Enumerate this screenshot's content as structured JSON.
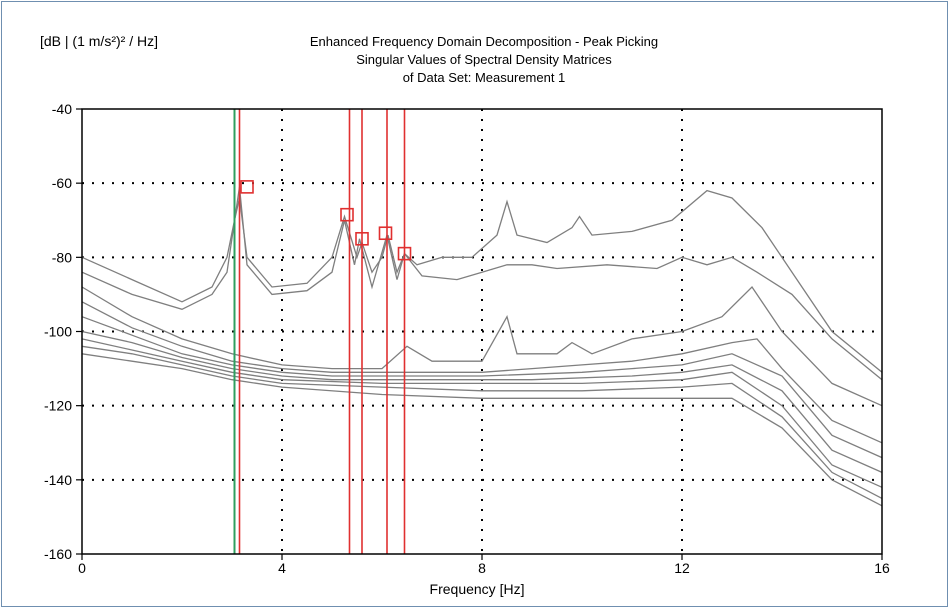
{
  "chart_data": {
    "type": "line",
    "title": [
      "Enhanced Frequency Domain Decomposition - Peak Picking",
      "Singular Values of Spectral Density Matrices",
      "of Data Set: Measurement 1"
    ],
    "xlabel": "Frequency [Hz]",
    "ylabel": "[dB | (1 m/s²)² / Hz]",
    "xlim": [
      0,
      16
    ],
    "ylim": [
      -160,
      -40
    ],
    "xticks": [
      0,
      4,
      8,
      12,
      16
    ],
    "yticks": [
      -40,
      -60,
      -80,
      -100,
      -120,
      -140,
      -160
    ],
    "grid": "dotted",
    "series": [
      {
        "values": [
          [
            0,
            -80
          ],
          [
            1,
            -86
          ],
          [
            2,
            -92
          ],
          [
            2.6,
            -88
          ],
          [
            2.9,
            -80
          ],
          [
            3.05,
            -70
          ],
          [
            3.15,
            -64
          ],
          [
            3.3,
            -80
          ],
          [
            3.8,
            -88
          ],
          [
            4.5,
            -87
          ],
          [
            5,
            -80
          ],
          [
            5.25,
            -69
          ],
          [
            5.5,
            -80
          ],
          [
            5.6,
            -76
          ],
          [
            5.8,
            -84
          ],
          [
            6.0,
            -80
          ],
          [
            6.12,
            -74
          ],
          [
            6.3,
            -84
          ],
          [
            6.45,
            -79
          ],
          [
            6.7,
            -82
          ],
          [
            7.2,
            -80
          ],
          [
            7.8,
            -80
          ],
          [
            8.3,
            -74
          ],
          [
            8.5,
            -65
          ],
          [
            8.7,
            -74
          ],
          [
            9.3,
            -76
          ],
          [
            9.8,
            -72
          ],
          [
            9.95,
            -69
          ],
          [
            10.2,
            -74
          ],
          [
            11,
            -73
          ],
          [
            11.8,
            -70
          ],
          [
            12.5,
            -62
          ],
          [
            13,
            -64
          ],
          [
            13.6,
            -72
          ],
          [
            14.2,
            -84
          ],
          [
            15,
            -100
          ],
          [
            16,
            -111
          ]
        ]
      },
      {
        "values": [
          [
            0,
            -84
          ],
          [
            1,
            -90
          ],
          [
            2,
            -94
          ],
          [
            2.6,
            -90
          ],
          [
            2.9,
            -84
          ],
          [
            3.15,
            -61
          ],
          [
            3.3,
            -82
          ],
          [
            3.8,
            -90
          ],
          [
            4.5,
            -89
          ],
          [
            5.0,
            -84
          ],
          [
            5.25,
            -70
          ],
          [
            5.45,
            -82
          ],
          [
            5.55,
            -75
          ],
          [
            5.8,
            -88
          ],
          [
            6.1,
            -74
          ],
          [
            6.3,
            -86
          ],
          [
            6.45,
            -79
          ],
          [
            6.8,
            -85
          ],
          [
            7.5,
            -86
          ],
          [
            8,
            -84
          ],
          [
            8.5,
            -82
          ],
          [
            9,
            -82
          ],
          [
            9.5,
            -83
          ],
          [
            10.5,
            -82
          ],
          [
            11.5,
            -83
          ],
          [
            12,
            -80
          ],
          [
            12.5,
            -82
          ],
          [
            13,
            -80
          ],
          [
            13.5,
            -84
          ],
          [
            14.2,
            -90
          ],
          [
            15,
            -102
          ],
          [
            16,
            -113
          ]
        ]
      },
      {
        "values": [
          [
            0,
            -88
          ],
          [
            1,
            -96
          ],
          [
            2,
            -102
          ],
          [
            3,
            -106
          ],
          [
            4,
            -109
          ],
          [
            5,
            -110
          ],
          [
            6,
            -110
          ],
          [
            6.5,
            -104
          ],
          [
            7,
            -108
          ],
          [
            8,
            -108
          ],
          [
            8.5,
            -96
          ],
          [
            8.7,
            -106
          ],
          [
            9.5,
            -106
          ],
          [
            9.8,
            -103
          ],
          [
            10.2,
            -106
          ],
          [
            11,
            -102
          ],
          [
            12,
            -100
          ],
          [
            12.8,
            -96
          ],
          [
            13.4,
            -88
          ],
          [
            14,
            -100
          ],
          [
            15,
            -114
          ],
          [
            16,
            -120
          ]
        ]
      },
      {
        "values": [
          [
            0,
            -92
          ],
          [
            1,
            -99
          ],
          [
            2,
            -104
          ],
          [
            3,
            -108
          ],
          [
            4,
            -110
          ],
          [
            5,
            -111
          ],
          [
            6,
            -111
          ],
          [
            7,
            -111
          ],
          [
            8,
            -111
          ],
          [
            9,
            -110
          ],
          [
            10,
            -109
          ],
          [
            11,
            -108
          ],
          [
            12,
            -106
          ],
          [
            13,
            -103
          ],
          [
            13.5,
            -102
          ],
          [
            14,
            -110
          ],
          [
            15,
            -124
          ],
          [
            16,
            -130
          ]
        ]
      },
      {
        "values": [
          [
            0,
            -96
          ],
          [
            1,
            -101
          ],
          [
            2,
            -106
          ],
          [
            3,
            -109
          ],
          [
            4,
            -111
          ],
          [
            5,
            -112
          ],
          [
            6,
            -112
          ],
          [
            8,
            -112
          ],
          [
            10,
            -111
          ],
          [
            11,
            -110
          ],
          [
            12,
            -109
          ],
          [
            13,
            -106
          ],
          [
            14,
            -112
          ],
          [
            15,
            -128
          ],
          [
            16,
            -134
          ]
        ]
      },
      {
        "values": [
          [
            0,
            -100
          ],
          [
            1,
            -103
          ],
          [
            2,
            -107
          ],
          [
            3,
            -110
          ],
          [
            4,
            -112
          ],
          [
            5,
            -113
          ],
          [
            7,
            -113
          ],
          [
            9,
            -113
          ],
          [
            11,
            -112
          ],
          [
            12,
            -111
          ],
          [
            13,
            -109
          ],
          [
            14,
            -116
          ],
          [
            15,
            -132
          ],
          [
            16,
            -138
          ]
        ]
      },
      {
        "values": [
          [
            0,
            -102
          ],
          [
            1,
            -105
          ],
          [
            2,
            -108
          ],
          [
            3,
            -111
          ],
          [
            4,
            -113
          ],
          [
            6,
            -114
          ],
          [
            8,
            -114
          ],
          [
            10,
            -114
          ],
          [
            12,
            -113
          ],
          [
            13,
            -111
          ],
          [
            14,
            -120
          ],
          [
            15,
            -136
          ],
          [
            16,
            -142
          ]
        ]
      },
      {
        "values": [
          [
            0,
            -104
          ],
          [
            1,
            -106
          ],
          [
            2,
            -109
          ],
          [
            3,
            -112
          ],
          [
            4,
            -114
          ],
          [
            6,
            -115
          ],
          [
            8,
            -116
          ],
          [
            10,
            -116
          ],
          [
            12,
            -115
          ],
          [
            13,
            -114
          ],
          [
            14,
            -123
          ],
          [
            15,
            -138
          ],
          [
            16,
            -145
          ]
        ]
      },
      {
        "values": [
          [
            0,
            -106
          ],
          [
            1,
            -108
          ],
          [
            2,
            -110
          ],
          [
            3,
            -113
          ],
          [
            4,
            -115
          ],
          [
            6,
            -117
          ],
          [
            8,
            -118
          ],
          [
            10,
            -118
          ],
          [
            12,
            -118
          ],
          [
            13,
            -118
          ],
          [
            14,
            -126
          ],
          [
            15,
            -140
          ],
          [
            16,
            -147
          ]
        ]
      }
    ],
    "red_vertical_lines_x": [
      3.15,
      5.35,
      5.6,
      6.1,
      6.45
    ],
    "green_vertical_line_x": 3.05,
    "peak_markers": [
      [
        3.3,
        -61
      ],
      [
        5.3,
        -68.5
      ],
      [
        5.6,
        -75
      ],
      [
        6.07,
        -73.5
      ],
      [
        6.45,
        -79
      ]
    ],
    "colors": {
      "curves": "#7f7f7f",
      "red": "#e03030",
      "green": "#2f9f5f",
      "frame": "#6f8fb0"
    }
  }
}
